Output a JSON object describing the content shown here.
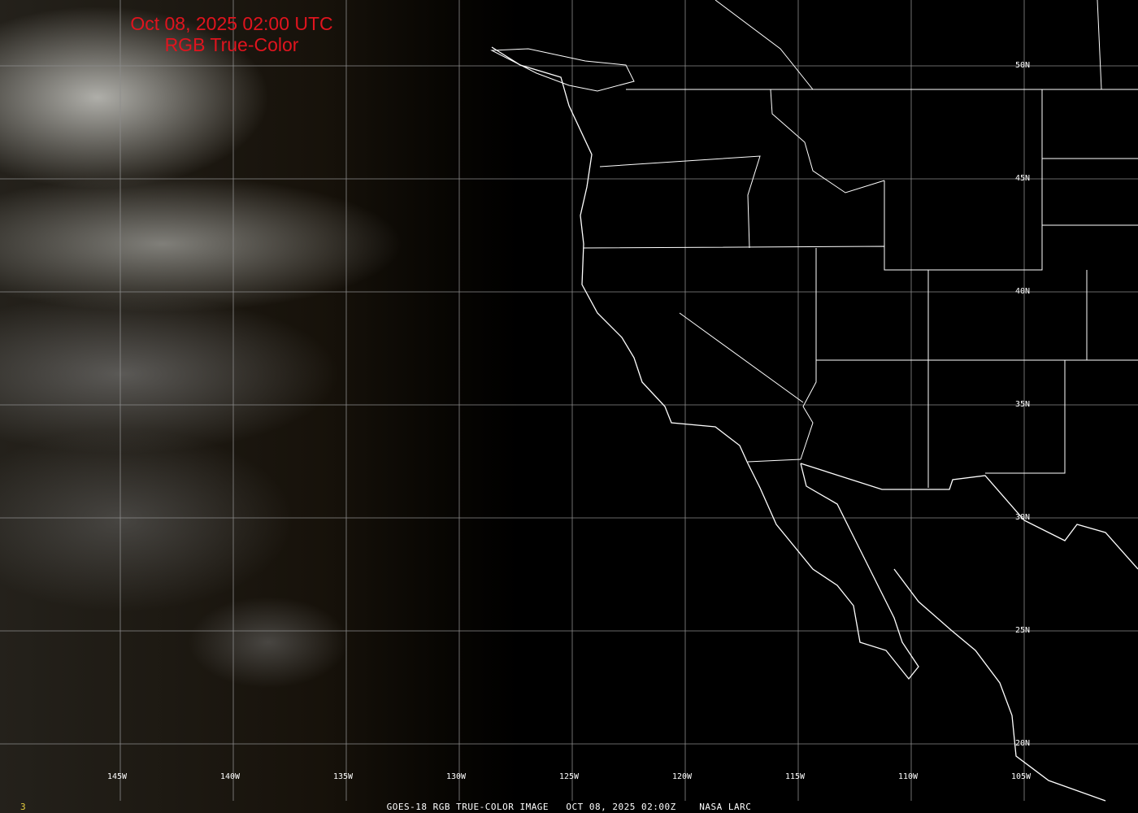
{
  "title": {
    "line1": "Oct 08, 2025 02:00 UTC",
    "line2": "RGB True-Color",
    "color": "#e0141e"
  },
  "caption": "GOES-18 RGB TRUE-COLOR IMAGE   OCT 08, 2025 02:00Z    NASA LARC",
  "frame_number": "3",
  "longitude_labels": [
    "145W",
    "140W",
    "135W",
    "130W",
    "125W",
    "120W",
    "115W",
    "110W",
    "105W"
  ],
  "latitude_labels": [
    "50N",
    "45N",
    "40N",
    "35N",
    "30N",
    "25N",
    "20N"
  ],
  "colors": {
    "grid": "#8c8c8c",
    "coastline": "#ffffff",
    "background": "#000000",
    "frame_number": "#e8d040"
  }
}
